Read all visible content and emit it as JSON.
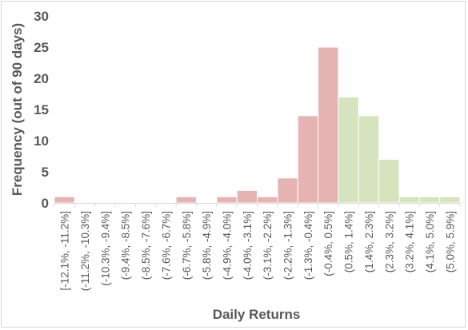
{
  "chart_data": {
    "type": "bar",
    "title": "",
    "xlabel": "Daily Returns",
    "ylabel": "Frequency (out of 90 days)",
    "ylim": [
      0,
      30
    ],
    "yticks": [
      0,
      5,
      10,
      15,
      20,
      25,
      30
    ],
    "grid": false,
    "legend": "none",
    "categories": [
      "[-12.1%, -11.2%]",
      "(-11.2%, -10.3%]",
      "(-10.3%, -9.4%]",
      "(-9.4%, -8.5%]",
      "(-8.5%, -7.6%]",
      "(-7.6%, -6.7%]",
      "(-6.7%, -5.8%]",
      "(-5.8%, -4.9%]",
      "(-4.9%, -4.0%]",
      "(-4.0%, -3.1%]",
      "(-3.1%, -2.2%]",
      "(-2.2%, -1.3%]",
      "(-1.3%, -0.4%]",
      "(-0.4%, 0.5%]",
      "(0.5%, 1.4%]",
      "(1.4%, 2.3%]",
      "(2.3%, 3.2%]",
      "(3.2%, 4.1%]",
      "(4.1%, 5.0%]",
      "(5.0%, 5.9%]"
    ],
    "values": [
      1,
      0,
      0,
      0,
      0,
      0,
      1,
      0,
      1,
      2,
      1,
      4,
      14,
      25,
      17,
      14,
      7,
      1,
      1,
      1
    ],
    "colors": {
      "negative": "#e6b3b3",
      "positive": "#d6e4bd",
      "bar_edge": "#ffffff",
      "axis": "#d9d9d9"
    },
    "color_split_index": 14
  }
}
